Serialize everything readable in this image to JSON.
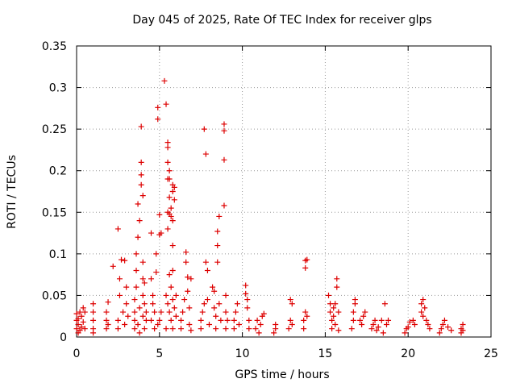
{
  "chart_data": {
    "type": "scatter",
    "title": "Day 045 of 2025, Rate Of TEC Index for receiver glps",
    "xlabel": "GPS time / hours",
    "ylabel": "ROTI / TECUs",
    "xlim": [
      0,
      25
    ],
    "ylim": [
      0,
      0.35
    ],
    "xticks": [
      0,
      5,
      10,
      15,
      20,
      25
    ],
    "xtick_labels": [
      "0",
      "5",
      "10",
      "15",
      "20",
      "25"
    ],
    "yticks": [
      0,
      0.05,
      0.1,
      0.15,
      0.2,
      0.25,
      0.3,
      0.35
    ],
    "ytick_labels": [
      "0",
      "0.05",
      "0.1",
      "0.15",
      "0.2",
      "0.25",
      "0.3",
      "0.35"
    ],
    "grid": true,
    "marker": "+",
    "color": "#dd0000",
    "series": [
      {
        "name": "ROTI",
        "points": [
          [
            0.0,
            0.01
          ],
          [
            0.0,
            0.02
          ],
          [
            0.0,
            0.028
          ],
          [
            0.1,
            0.005
          ],
          [
            0.1,
            0.015
          ],
          [
            0.1,
            0.022
          ],
          [
            0.2,
            0.03
          ],
          [
            0.2,
            0.008
          ],
          [
            0.3,
            0.012
          ],
          [
            0.3,
            0.025
          ],
          [
            0.4,
            0.035
          ],
          [
            0.4,
            0.018
          ],
          [
            0.5,
            0.03
          ],
          [
            0.5,
            0.01
          ],
          [
            1.0,
            0.01
          ],
          [
            1.0,
            0.02
          ],
          [
            1.0,
            0.03
          ],
          [
            1.0,
            0.04
          ],
          [
            1.0,
            0.005
          ],
          [
            1.8,
            0.01
          ],
          [
            1.8,
            0.02
          ],
          [
            1.8,
            0.03
          ],
          [
            1.9,
            0.042
          ],
          [
            1.9,
            0.015
          ],
          [
            2.2,
            0.085
          ],
          [
            2.5,
            0.13
          ],
          [
            2.5,
            0.01
          ],
          [
            2.5,
            0.02
          ],
          [
            2.6,
            0.07
          ],
          [
            2.6,
            0.05
          ],
          [
            2.7,
            0.093
          ],
          [
            2.8,
            0.03
          ],
          [
            2.9,
            0.092
          ],
          [
            2.9,
            0.015
          ],
          [
            3.0,
            0.06
          ],
          [
            3.0,
            0.04
          ],
          [
            3.1,
            0.025
          ],
          [
            3.5,
            0.01
          ],
          [
            3.5,
            0.02
          ],
          [
            3.5,
            0.03
          ],
          [
            3.5,
            0.045
          ],
          [
            3.6,
            0.06
          ],
          [
            3.6,
            0.08
          ],
          [
            3.6,
            0.1
          ],
          [
            3.7,
            0.12
          ],
          [
            3.7,
            0.16
          ],
          [
            3.7,
            0.015
          ],
          [
            3.8,
            0.14
          ],
          [
            3.8,
            0.035
          ],
          [
            3.8,
            0.005
          ],
          [
            3.9,
            0.253
          ],
          [
            3.9,
            0.21
          ],
          [
            3.9,
            0.195
          ],
          [
            3.9,
            0.183
          ],
          [
            4.0,
            0.17
          ],
          [
            4.0,
            0.09
          ],
          [
            4.0,
            0.07
          ],
          [
            4.0,
            0.05
          ],
          [
            4.0,
            0.025
          ],
          [
            4.1,
            0.01
          ],
          [
            4.1,
            0.04
          ],
          [
            4.1,
            0.065
          ],
          [
            4.2,
            0.02
          ],
          [
            4.2,
            0.03
          ],
          [
            4.5,
            0.125
          ],
          [
            4.5,
            0.07
          ],
          [
            4.5,
            0.02
          ],
          [
            4.6,
            0.05
          ],
          [
            4.6,
            0.04
          ],
          [
            4.7,
            0.03
          ],
          [
            4.7,
            0.01
          ],
          [
            4.8,
            0.1
          ],
          [
            4.8,
            0.078
          ],
          [
            4.9,
            0.262
          ],
          [
            4.9,
            0.276
          ],
          [
            4.9,
            0.015
          ],
          [
            5.0,
            0.147
          ],
          [
            5.0,
            0.123
          ],
          [
            5.0,
            0.02
          ],
          [
            5.1,
            0.125
          ],
          [
            5.1,
            0.03
          ],
          [
            5.3,
            0.308
          ],
          [
            5.4,
            0.28
          ],
          [
            5.4,
            0.05
          ],
          [
            5.4,
            0.01
          ],
          [
            5.5,
            0.234
          ],
          [
            5.5,
            0.228
          ],
          [
            5.5,
            0.21
          ],
          [
            5.5,
            0.19
          ],
          [
            5.5,
            0.15
          ],
          [
            5.5,
            0.13
          ],
          [
            5.5,
            0.04
          ],
          [
            5.6,
            0.2
          ],
          [
            5.6,
            0.19
          ],
          [
            5.6,
            0.168
          ],
          [
            5.6,
            0.148
          ],
          [
            5.6,
            0.075
          ],
          [
            5.6,
            0.03
          ],
          [
            5.7,
            0.155
          ],
          [
            5.7,
            0.145
          ],
          [
            5.7,
            0.06
          ],
          [
            5.7,
            0.02
          ],
          [
            5.8,
            0.183
          ],
          [
            5.8,
            0.175
          ],
          [
            5.8,
            0.14
          ],
          [
            5.8,
            0.11
          ],
          [
            5.8,
            0.08
          ],
          [
            5.8,
            0.045
          ],
          [
            5.8,
            0.01
          ],
          [
            5.9,
            0.18
          ],
          [
            5.9,
            0.165
          ],
          [
            5.9,
            0.035
          ],
          [
            6.0,
            0.05
          ],
          [
            6.0,
            0.025
          ],
          [
            6.3,
            0.01
          ],
          [
            6.3,
            0.02
          ],
          [
            6.4,
            0.03
          ],
          [
            6.5,
            0.045
          ],
          [
            6.6,
            0.102
          ],
          [
            6.6,
            0.09
          ],
          [
            6.7,
            0.072
          ],
          [
            6.7,
            0.055
          ],
          [
            6.8,
            0.035
          ],
          [
            6.8,
            0.015
          ],
          [
            6.9,
            0.07
          ],
          [
            6.9,
            0.008
          ],
          [
            7.5,
            0.01
          ],
          [
            7.5,
            0.02
          ],
          [
            7.6,
            0.03
          ],
          [
            7.7,
            0.04
          ],
          [
            7.7,
            0.25
          ],
          [
            7.8,
            0.22
          ],
          [
            7.8,
            0.09
          ],
          [
            7.9,
            0.08
          ],
          [
            7.9,
            0.045
          ],
          [
            8.0,
            0.015
          ],
          [
            8.2,
            0.06
          ],
          [
            8.3,
            0.055
          ],
          [
            8.3,
            0.035
          ],
          [
            8.4,
            0.025
          ],
          [
            8.4,
            0.01
          ],
          [
            8.5,
            0.127
          ],
          [
            8.5,
            0.11
          ],
          [
            8.5,
            0.09
          ],
          [
            8.6,
            0.145
          ],
          [
            8.6,
            0.04
          ],
          [
            8.7,
            0.02
          ],
          [
            8.9,
            0.256
          ],
          [
            8.9,
            0.248
          ],
          [
            8.9,
            0.213
          ],
          [
            8.9,
            0.158
          ],
          [
            9.0,
            0.05
          ],
          [
            9.0,
            0.03
          ],
          [
            9.0,
            0.01
          ],
          [
            9.1,
            0.02
          ],
          [
            9.5,
            0.01
          ],
          [
            9.5,
            0.02
          ],
          [
            9.6,
            0.03
          ],
          [
            9.7,
            0.04
          ],
          [
            9.8,
            0.015
          ],
          [
            10.2,
            0.062
          ],
          [
            10.2,
            0.052
          ],
          [
            10.3,
            0.045
          ],
          [
            10.3,
            0.035
          ],
          [
            10.4,
            0.02
          ],
          [
            10.4,
            0.01
          ],
          [
            10.8,
            0.01
          ],
          [
            10.9,
            0.02
          ],
          [
            11.0,
            0.005
          ],
          [
            11.1,
            0.015
          ],
          [
            11.2,
            0.025
          ],
          [
            11.3,
            0.028
          ],
          [
            11.9,
            0.005
          ],
          [
            12.0,
            0.01
          ],
          [
            12.0,
            0.015
          ],
          [
            12.8,
            0.01
          ],
          [
            12.9,
            0.02
          ],
          [
            12.9,
            0.045
          ],
          [
            13.0,
            0.04
          ],
          [
            13.0,
            0.015
          ],
          [
            13.7,
            0.01
          ],
          [
            13.7,
            0.02
          ],
          [
            13.8,
            0.03
          ],
          [
            13.8,
            0.092
          ],
          [
            13.8,
            0.083
          ],
          [
            13.9,
            0.093
          ],
          [
            13.9,
            0.025
          ],
          [
            15.2,
            0.05
          ],
          [
            15.3,
            0.04
          ],
          [
            15.3,
            0.03
          ],
          [
            15.4,
            0.02
          ],
          [
            15.4,
            0.01
          ],
          [
            15.5,
            0.035
          ],
          [
            15.5,
            0.025
          ],
          [
            15.6,
            0.04
          ],
          [
            15.6,
            0.015
          ],
          [
            15.7,
            0.07
          ],
          [
            15.7,
            0.06
          ],
          [
            15.8,
            0.03
          ],
          [
            15.8,
            0.008
          ],
          [
            16.6,
            0.01
          ],
          [
            16.7,
            0.02
          ],
          [
            16.7,
            0.03
          ],
          [
            16.8,
            0.045
          ],
          [
            16.8,
            0.04
          ],
          [
            17.1,
            0.02
          ],
          [
            17.2,
            0.015
          ],
          [
            17.3,
            0.025
          ],
          [
            17.4,
            0.03
          ],
          [
            17.8,
            0.01
          ],
          [
            17.9,
            0.015
          ],
          [
            18.0,
            0.02
          ],
          [
            18.1,
            0.008
          ],
          [
            18.2,
            0.012
          ],
          [
            18.4,
            0.02
          ],
          [
            18.5,
            0.005
          ],
          [
            18.6,
            0.04
          ],
          [
            18.7,
            0.015
          ],
          [
            18.8,
            0.02
          ],
          [
            19.8,
            0.005
          ],
          [
            19.9,
            0.01
          ],
          [
            20.0,
            0.012
          ],
          [
            20.1,
            0.018
          ],
          [
            20.3,
            0.02
          ],
          [
            20.4,
            0.015
          ],
          [
            20.8,
            0.03
          ],
          [
            20.8,
            0.04
          ],
          [
            20.9,
            0.025
          ],
          [
            20.9,
            0.045
          ],
          [
            21.0,
            0.035
          ],
          [
            21.1,
            0.02
          ],
          [
            21.2,
            0.015
          ],
          [
            21.3,
            0.01
          ],
          [
            21.9,
            0.005
          ],
          [
            22.0,
            0.01
          ],
          [
            22.1,
            0.015
          ],
          [
            22.2,
            0.02
          ],
          [
            22.4,
            0.012
          ],
          [
            22.6,
            0.008
          ],
          [
            23.2,
            0.005
          ],
          [
            23.2,
            0.01
          ],
          [
            23.3,
            0.015
          ],
          [
            23.3,
            0.008
          ]
        ]
      }
    ]
  }
}
